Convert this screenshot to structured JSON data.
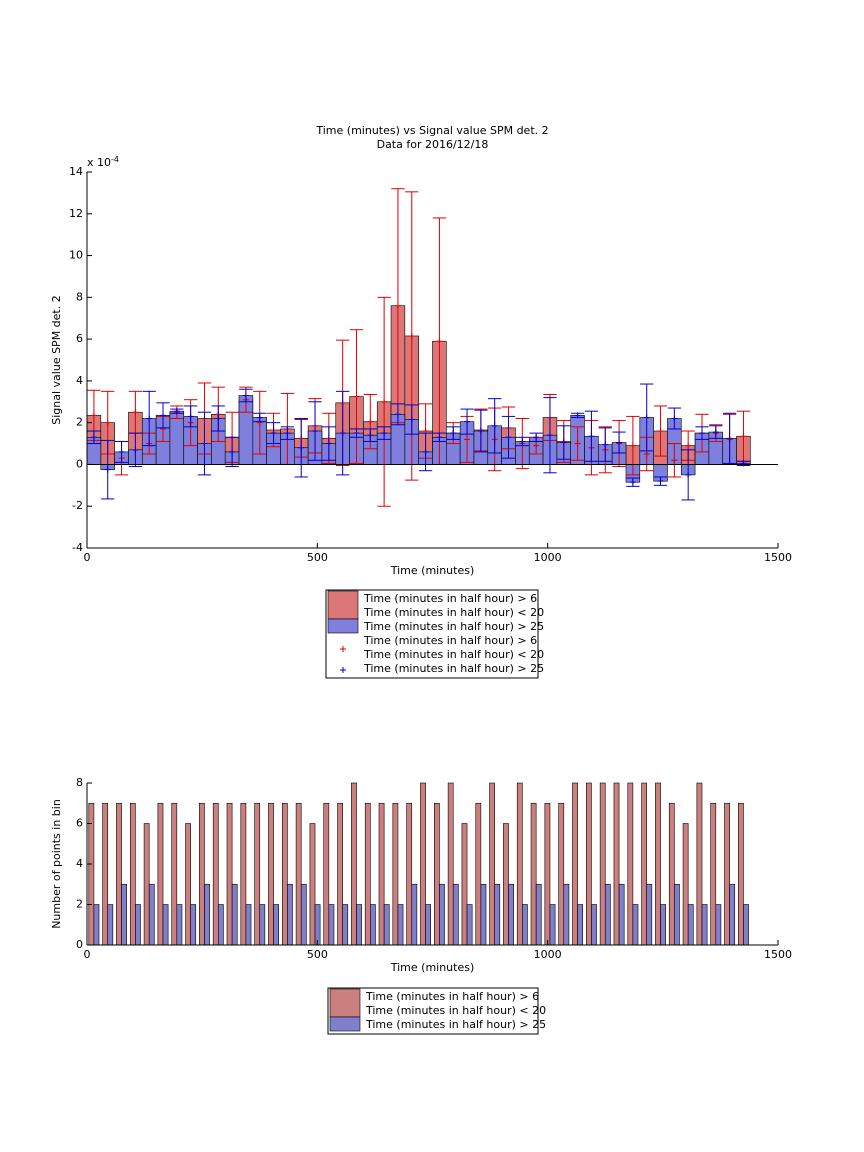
{
  "chart_data": [
    {
      "type": "bar",
      "bar_mode": "overlay",
      "title": [
        "Time (minutes) vs Signal value SPM det. 2",
        "Data for 2016/12/18"
      ],
      "x_label": "Time (minutes)",
      "y_label": "Signal value SPM det. 2",
      "yscale_label": "x 10",
      "yscale_exponent": -4,
      "x": [
        15,
        45,
        75,
        105,
        135,
        165,
        195,
        225,
        255,
        285,
        315,
        345,
        375,
        405,
        435,
        465,
        495,
        525,
        555,
        585,
        615,
        645,
        675,
        705,
        735,
        765,
        795,
        825,
        855,
        885,
        915,
        945,
        975,
        1005,
        1035,
        1065,
        1095,
        1125,
        1155,
        1185,
        1215,
        1245,
        1275,
        1305,
        1335,
        1365,
        1395,
        1425
      ],
      "xlim": [
        0,
        1500
      ],
      "xticks": [
        0,
        500,
        1000,
        1500
      ],
      "ylim": [
        -4,
        14
      ],
      "yticks": [
        -4,
        -2,
        0,
        2,
        4,
        6,
        8,
        10,
        12,
        14
      ],
      "series": [
        {
          "name": [
            "Time (minutes in half hour) > 6",
            "Time (minutes in half hour) < 20"
          ],
          "color": "#dd7777",
          "error_color": "#e00000",
          "values": [
            2.35,
            2.0,
            0.3,
            2.5,
            1.0,
            1.7,
            2.5,
            2.0,
            2.2,
            2.4,
            1.3,
            3.1,
            2.0,
            1.65,
            1.7,
            1.25,
            1.85,
            1.25,
            2.95,
            3.25,
            2.05,
            3.0,
            7.6,
            6.15,
            1.6,
            5.9,
            1.5,
            1.2,
            1.65,
            1.2,
            1.75,
            1.0,
            0.9,
            2.25,
            1.1,
            1.0,
            0.8,
            0.7,
            1.0,
            0.9,
            0.5,
            1.6,
            0.2,
            0.9,
            1.5,
            1.5,
            1.2,
            1.35
          ],
          "errors": [
            1.2,
            1.5,
            0.8,
            1.0,
            0.5,
            0.6,
            0.3,
            1.1,
            1.7,
            1.3,
            1.2,
            0.6,
            1.5,
            0.8,
            1.7,
            0.9,
            1.3,
            1.2,
            3.0,
            3.2,
            1.3,
            5.0,
            5.6,
            6.9,
            1.3,
            5.9,
            0.5,
            1.1,
            1.0,
            1.5,
            1.0,
            1.2,
            0.4,
            1.1,
            1.0,
            0.8,
            1.3,
            1.1,
            1.1,
            1.4,
            0.8,
            1.2,
            0.8,
            0.7,
            0.9,
            0.4,
            1.2,
            1.2
          ]
        },
        {
          "name": [
            "Time (minutes in half hour) > 25"
          ],
          "color": "#7f7fdd",
          "error_color": "#0000cc",
          "values": [
            1.3,
            -0.25,
            0.6,
            0.7,
            2.2,
            2.35,
            2.55,
            2.3,
            1.0,
            2.2,
            0.6,
            3.3,
            2.25,
            1.5,
            1.5,
            0.8,
            1.6,
            1.0,
            1.5,
            1.5,
            1.4,
            1.5,
            2.4,
            2.15,
            0.6,
            1.3,
            1.5,
            2.05,
            1.6,
            1.85,
            1.3,
            1.1,
            1.3,
            1.4,
            1.05,
            2.35,
            1.35,
            0.95,
            1.05,
            -0.85,
            2.25,
            -0.8,
            2.2,
            -0.5,
            1.5,
            1.55,
            1.25,
            0.05
          ],
          "errors": [
            0.3,
            1.4,
            0.5,
            0.8,
            1.3,
            0.6,
            0.1,
            0.5,
            1.5,
            0.6,
            0.7,
            0.3,
            0.2,
            0.5,
            0.3,
            1.4,
            1.4,
            0.8,
            2.0,
            0.2,
            0.3,
            0.3,
            0.5,
            0.7,
            0.9,
            0.2,
            0.3,
            0.6,
            1.0,
            1.3,
            1.0,
            0.2,
            0.2,
            1.8,
            0.8,
            0.1,
            1.2,
            0.8,
            0.5,
            0.2,
            1.6,
            0.2,
            0.5,
            1.2,
            0.3,
            0.3,
            1.2,
            0.1
          ]
        }
      ]
    },
    {
      "type": "bar",
      "bar_mode": "grouped",
      "x_label": "Time (minutes)",
      "y_label": "Number of points in bin",
      "x": [
        15,
        45,
        75,
        105,
        135,
        165,
        195,
        225,
        255,
        285,
        315,
        345,
        375,
        405,
        435,
        465,
        495,
        525,
        555,
        585,
        615,
        645,
        675,
        705,
        735,
        765,
        795,
        825,
        855,
        885,
        915,
        945,
        975,
        1005,
        1035,
        1065,
        1095,
        1125,
        1155,
        1185,
        1215,
        1245,
        1275,
        1305,
        1335,
        1365,
        1395,
        1425
      ],
      "xlim": [
        0,
        1500
      ],
      "xticks": [
        0,
        500,
        1000,
        1500
      ],
      "ylim": [
        0,
        8
      ],
      "yticks": [
        0,
        2,
        4,
        6,
        8
      ],
      "series": [
        {
          "name": [
            "Time (minutes in half hour) > 6",
            "Time (minutes in half hour) < 20"
          ],
          "color": "#cc7f7f",
          "values": [
            7,
            7,
            7,
            7,
            6,
            7,
            7,
            6,
            7,
            7,
            7,
            7,
            7,
            7,
            7,
            7,
            6,
            7,
            7,
            8,
            7,
            7,
            7,
            7,
            8,
            7,
            8,
            6,
            7,
            8,
            6,
            8,
            7,
            7,
            7,
            8,
            8,
            8,
            8,
            8,
            8,
            8,
            7,
            6,
            8,
            7,
            7,
            7
          ]
        },
        {
          "name": [
            "Time (minutes in half hour) > 25"
          ],
          "color": "#7f7fcc",
          "values": [
            2,
            2,
            3,
            2,
            3,
            2,
            2,
            2,
            3,
            2,
            3,
            2,
            2,
            2,
            3,
            3,
            2,
            2,
            2,
            2,
            2,
            2,
            2,
            3,
            2,
            3,
            3,
            2,
            3,
            3,
            3,
            2,
            3,
            2,
            3,
            2,
            2,
            3,
            3,
            2,
            3,
            2,
            3,
            2,
            2,
            2,
            3,
            2
          ]
        }
      ]
    }
  ]
}
